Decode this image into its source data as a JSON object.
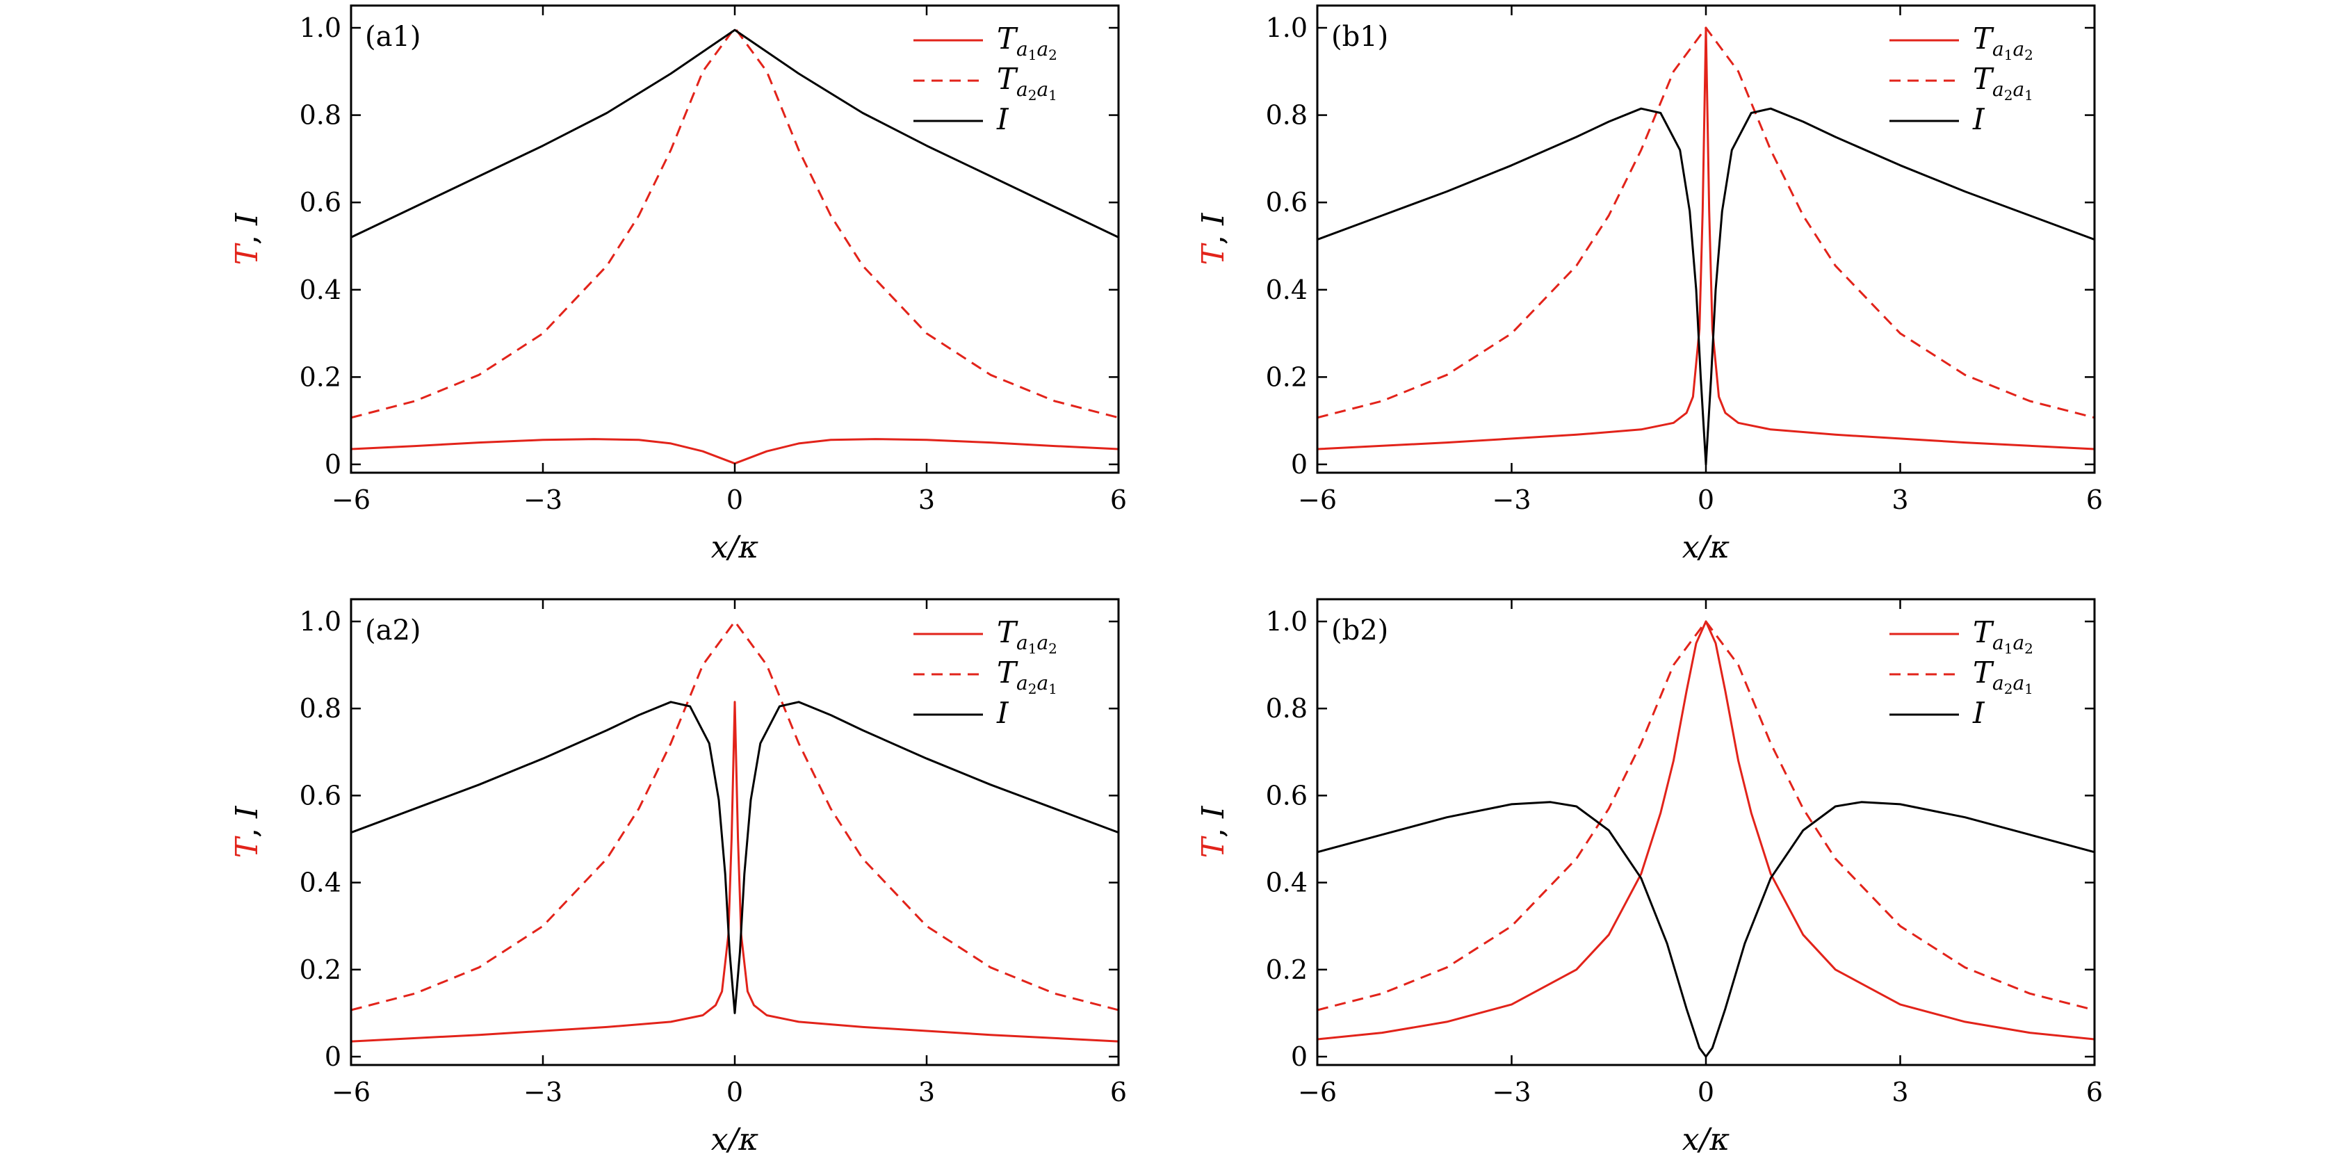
{
  "chart_data": [
    {
      "type": "line",
      "panel": "(a1)",
      "xlabel": "x/κ",
      "ylabel": {
        "symbol_t": "T",
        "sep": ",",
        "symbol_i": "I"
      },
      "xlim": [
        -6,
        6
      ],
      "ylim": [
        0,
        1.0
      ],
      "xticks": [
        -6,
        -3,
        0,
        3,
        6
      ],
      "xtick_labels": [
        "−6",
        "−3",
        "0",
        "3",
        "6"
      ],
      "yticks": [
        0,
        0.2,
        0.4,
        0.6,
        0.8,
        1.0
      ],
      "ytick_labels": [
        "0",
        "0.2",
        "0.4",
        "0.6",
        "0.8",
        "1.0"
      ],
      "legend_position": "top-right",
      "series": [
        {
          "name": "T_{a1a2}",
          "main": "T",
          "sub": "a",
          "subsub1": "1",
          "sub2": "a",
          "subsub2": "2",
          "color": "#e2231a",
          "dash": "solid",
          "x": [
            -6,
            -5,
            -4,
            -3,
            -2.2,
            -1.5,
            -1,
            -0.5,
            0,
            0.5,
            1,
            1.5,
            2.2,
            3,
            4,
            5,
            6
          ],
          "y": [
            0.035,
            0.042,
            0.05,
            0.056,
            0.058,
            0.056,
            0.048,
            0.03,
            0.002,
            0.03,
            0.048,
            0.056,
            0.058,
            0.056,
            0.05,
            0.042,
            0.035
          ]
        },
        {
          "name": "T_{a2a1}",
          "main": "T",
          "sub": "a",
          "subsub1": "2",
          "sub2": "a",
          "subsub2": "1",
          "color": "#e2231a",
          "dash": "dashed",
          "x": [
            -6,
            -5,
            -4,
            -3,
            -2,
            -1.5,
            -1,
            -0.5,
            0,
            0.5,
            1,
            1.5,
            2,
            3,
            4,
            5,
            6
          ],
          "y": [
            0.107,
            0.145,
            0.205,
            0.3,
            0.455,
            0.57,
            0.72,
            0.9,
            1.0,
            0.9,
            0.72,
            0.57,
            0.455,
            0.3,
            0.205,
            0.145,
            0.107
          ]
        },
        {
          "name": "I",
          "main": "I",
          "color": "#000000",
          "dash": "solid",
          "x": [
            -6,
            -5,
            -4,
            -3,
            -2,
            -1,
            -0.5,
            0,
            0.5,
            1,
            2,
            3,
            4,
            5,
            6
          ],
          "y": [
            0.52,
            0.59,
            0.66,
            0.73,
            0.805,
            0.895,
            0.945,
            0.995,
            0.945,
            0.895,
            0.805,
            0.73,
            0.66,
            0.59,
            0.52
          ]
        }
      ]
    },
    {
      "type": "line",
      "panel": "(b1)",
      "xlabel": "x/κ",
      "ylabel": {
        "symbol_t": "T",
        "sep": ",",
        "symbol_i": "I"
      },
      "xlim": [
        -6,
        6
      ],
      "ylim": [
        0,
        1.0
      ],
      "xticks": [
        -6,
        -3,
        0,
        3,
        6
      ],
      "xtick_labels": [
        "−6",
        "−3",
        "0",
        "3",
        "6"
      ],
      "yticks": [
        0,
        0.2,
        0.4,
        0.6,
        0.8,
        1.0
      ],
      "ytick_labels": [
        "0",
        "0.2",
        "0.4",
        "0.6",
        "0.8",
        "1.0"
      ],
      "legend_position": "top-right",
      "series": [
        {
          "name": "T_{a1a2}",
          "main": "T",
          "sub": "a",
          "subsub1": "1",
          "sub2": "a",
          "subsub2": "2",
          "color": "#e2231a",
          "dash": "solid",
          "x": [
            -6,
            -4,
            -2,
            -1,
            -0.5,
            -0.3,
            -0.2,
            -0.1,
            -0.05,
            0,
            0.05,
            0.1,
            0.2,
            0.3,
            0.5,
            1,
            2,
            4,
            6
          ],
          "y": [
            0.035,
            0.05,
            0.068,
            0.08,
            0.095,
            0.118,
            0.155,
            0.31,
            0.58,
            1.0,
            0.58,
            0.31,
            0.155,
            0.118,
            0.095,
            0.08,
            0.068,
            0.05,
            0.035
          ]
        },
        {
          "name": "T_{a2a1}",
          "main": "T",
          "sub": "a",
          "subsub1": "2",
          "sub2": "a",
          "subsub2": "1",
          "color": "#e2231a",
          "dash": "dashed",
          "x": [
            -6,
            -5,
            -4,
            -3,
            -2,
            -1.5,
            -1,
            -0.5,
            0,
            0.5,
            1,
            1.5,
            2,
            3,
            4,
            5,
            6
          ],
          "y": [
            0.107,
            0.145,
            0.205,
            0.3,
            0.455,
            0.57,
            0.72,
            0.9,
            1.0,
            0.9,
            0.72,
            0.57,
            0.455,
            0.3,
            0.205,
            0.145,
            0.107
          ]
        },
        {
          "name": "I",
          "main": "I",
          "color": "#000000",
          "dash": "solid",
          "x": [
            -6,
            -5,
            -4,
            -3,
            -2,
            -1.5,
            -1,
            -0.7,
            -0.4,
            -0.25,
            -0.15,
            -0.08,
            0,
            0.08,
            0.15,
            0.25,
            0.4,
            0.7,
            1,
            1.5,
            2,
            3,
            4,
            5,
            6
          ],
          "y": [
            0.515,
            0.57,
            0.625,
            0.685,
            0.75,
            0.785,
            0.815,
            0.805,
            0.72,
            0.58,
            0.4,
            0.2,
            0.0,
            0.2,
            0.4,
            0.58,
            0.72,
            0.805,
            0.815,
            0.785,
            0.75,
            0.685,
            0.625,
            0.57,
            0.515
          ]
        }
      ]
    },
    {
      "type": "line",
      "panel": "(a2)",
      "xlabel": "x/κ",
      "ylabel": {
        "symbol_t": "T",
        "sep": ",",
        "symbol_i": "I"
      },
      "xlim": [
        -6,
        6
      ],
      "ylim": [
        0,
        1.0
      ],
      "xticks": [
        -6,
        -3,
        0,
        3,
        6
      ],
      "xtick_labels": [
        "−6",
        "−3",
        "0",
        "3",
        "6"
      ],
      "yticks": [
        0,
        0.2,
        0.4,
        0.6,
        0.8,
        1.0
      ],
      "ytick_labels": [
        "0",
        "0.2",
        "0.4",
        "0.6",
        "0.8",
        "1.0"
      ],
      "legend_position": "top-right",
      "series": [
        {
          "name": "T_{a1a2}",
          "main": "T",
          "sub": "a",
          "subsub1": "1",
          "sub2": "a",
          "subsub2": "2",
          "color": "#e2231a",
          "dash": "solid",
          "x": [
            -6,
            -4,
            -2,
            -1,
            -0.5,
            -0.3,
            -0.2,
            -0.1,
            -0.05,
            0,
            0.05,
            0.1,
            0.2,
            0.3,
            0.5,
            1,
            2,
            4,
            6
          ],
          "y": [
            0.035,
            0.05,
            0.068,
            0.08,
            0.095,
            0.118,
            0.15,
            0.28,
            0.5,
            0.815,
            0.5,
            0.28,
            0.15,
            0.118,
            0.095,
            0.08,
            0.068,
            0.05,
            0.035
          ]
        },
        {
          "name": "T_{a2a1}",
          "main": "T",
          "sub": "a",
          "subsub1": "2",
          "sub2": "a",
          "subsub2": "1",
          "color": "#e2231a",
          "dash": "dashed",
          "x": [
            -6,
            -5,
            -4,
            -3,
            -2,
            -1.5,
            -1,
            -0.5,
            0,
            0.5,
            1,
            1.5,
            2,
            3,
            4,
            5,
            6
          ],
          "y": [
            0.107,
            0.145,
            0.205,
            0.3,
            0.455,
            0.57,
            0.72,
            0.9,
            1.0,
            0.9,
            0.72,
            0.57,
            0.455,
            0.3,
            0.205,
            0.145,
            0.107
          ]
        },
        {
          "name": "I",
          "main": "I",
          "color": "#000000",
          "dash": "solid",
          "x": [
            -6,
            -5,
            -4,
            -3,
            -2,
            -1.5,
            -1,
            -0.7,
            -0.4,
            -0.25,
            -0.15,
            -0.08,
            0,
            0.08,
            0.15,
            0.25,
            0.4,
            0.7,
            1,
            1.5,
            2,
            3,
            4,
            5,
            6
          ],
          "y": [
            0.515,
            0.57,
            0.625,
            0.685,
            0.75,
            0.785,
            0.815,
            0.805,
            0.72,
            0.59,
            0.42,
            0.24,
            0.1,
            0.24,
            0.42,
            0.59,
            0.72,
            0.805,
            0.815,
            0.785,
            0.75,
            0.685,
            0.625,
            0.57,
            0.515
          ]
        }
      ]
    },
    {
      "type": "line",
      "panel": "(b2)",
      "xlabel": "x/κ",
      "ylabel": {
        "symbol_t": "T",
        "sep": ",",
        "symbol_i": "I"
      },
      "xlim": [
        -6,
        6
      ],
      "ylim": [
        0,
        1.0
      ],
      "xticks": [
        -6,
        -3,
        0,
        3,
        6
      ],
      "xtick_labels": [
        "−6",
        "−3",
        "0",
        "3",
        "6"
      ],
      "yticks": [
        0,
        0.2,
        0.4,
        0.6,
        0.8,
        1.0
      ],
      "ytick_labels": [
        "0",
        "0.2",
        "0.4",
        "0.6",
        "0.8",
        "1.0"
      ],
      "legend_position": "top-right",
      "series": [
        {
          "name": "T_{a1a2}",
          "main": "T",
          "sub": "a",
          "subsub1": "1",
          "sub2": "a",
          "subsub2": "2",
          "color": "#e2231a",
          "dash": "solid",
          "x": [
            -6,
            -5,
            -4,
            -3,
            -2,
            -1.5,
            -1,
            -0.7,
            -0.5,
            -0.3,
            -0.15,
            0,
            0.15,
            0.3,
            0.5,
            0.7,
            1,
            1.5,
            2,
            3,
            4,
            5,
            6
          ],
          "y": [
            0.04,
            0.055,
            0.08,
            0.12,
            0.2,
            0.28,
            0.42,
            0.56,
            0.68,
            0.84,
            0.95,
            1.0,
            0.95,
            0.84,
            0.68,
            0.56,
            0.42,
            0.28,
            0.2,
            0.12,
            0.08,
            0.055,
            0.04
          ]
        },
        {
          "name": "T_{a2a1}",
          "main": "T",
          "sub": "a",
          "subsub1": "2",
          "sub2": "a",
          "subsub2": "1",
          "color": "#e2231a",
          "dash": "dashed",
          "x": [
            -6,
            -5,
            -4,
            -3,
            -2,
            -1.5,
            -1,
            -0.5,
            0,
            0.5,
            1,
            1.5,
            2,
            3,
            4,
            5,
            6
          ],
          "y": [
            0.107,
            0.145,
            0.205,
            0.3,
            0.455,
            0.57,
            0.72,
            0.9,
            1.0,
            0.9,
            0.72,
            0.57,
            0.455,
            0.3,
            0.205,
            0.145,
            0.107
          ]
        },
        {
          "name": "I",
          "main": "I",
          "color": "#000000",
          "dash": "solid",
          "x": [
            -6,
            -5,
            -4,
            -3,
            -2.4,
            -2,
            -1.5,
            -1,
            -0.6,
            -0.3,
            -0.1,
            0,
            0.1,
            0.3,
            0.6,
            1,
            1.5,
            2,
            2.4,
            3,
            4,
            5,
            6
          ],
          "y": [
            0.47,
            0.51,
            0.55,
            0.58,
            0.585,
            0.575,
            0.52,
            0.41,
            0.26,
            0.11,
            0.02,
            0.0,
            0.02,
            0.11,
            0.26,
            0.41,
            0.52,
            0.575,
            0.585,
            0.58,
            0.55,
            0.51,
            0.47
          ]
        }
      ]
    }
  ]
}
